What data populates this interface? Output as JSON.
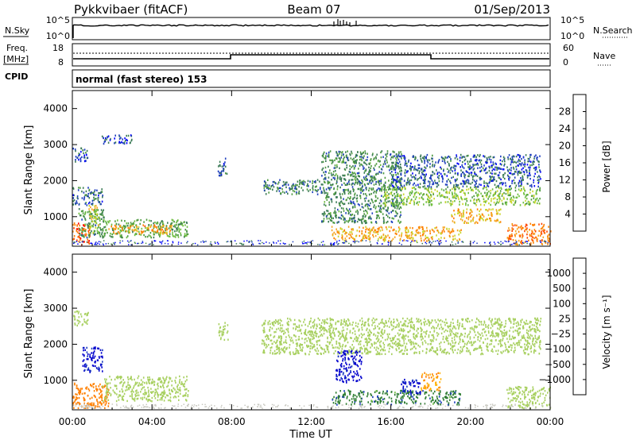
{
  "header": {
    "radar": "Pykkvibaer (fitACF)",
    "beam": "Beam 07",
    "date": "01/Sep/2013"
  },
  "strip_panels": {
    "nsky_label": "N.Sky",
    "nsky_ticks": [
      "10^5",
      "10^0"
    ],
    "nsearch_label": "N.Search",
    "freq_label_line1": "Freq.",
    "freq_label_line2": "[MHz]",
    "freq_ticks": [
      "18",
      "8"
    ],
    "nave_ticks": [
      "60",
      "0"
    ],
    "nave_label": "Nave",
    "cpid_label": "CPID",
    "cpid_text": "normal (fast stereo) 153"
  },
  "colors": {
    "power": [
      "#0000ff",
      "#1f3fbf",
      "#3a7a55",
      "#4e9a40",
      "#6fbf3f",
      "#c9d62a",
      "#f5a623",
      "#ff7f00",
      "#ff4500",
      "#ff0000"
    ],
    "velocity": [
      "#ff0000",
      "#ff4500",
      "#ff7f00",
      "#ffb000",
      "#c8c8c0",
      "#a8d060",
      "#6fbf3f",
      "#2e7d32",
      "#1f3fbf",
      "#0000cc"
    ]
  },
  "chart_data": [
    {
      "type": "heatmap",
      "panel": "power",
      "ylabel": "Slant Range [km]",
      "xlabel": "",
      "ylim": [
        180,
        4500
      ],
      "yticks": [
        "1000",
        "2000",
        "3000",
        "4000"
      ],
      "xticks": [
        "00:00",
        "04:00",
        "08:00",
        "12:00",
        "16:00",
        "20:00",
        "00:00"
      ],
      "colorbar": {
        "label": "Power [dB]",
        "ticks": [
          "4",
          "8",
          "12",
          "16",
          "20",
          "24",
          "28"
        ]
      },
      "regions": [
        {
          "t": [
            0.0,
            0.9
          ],
          "r": [
            200,
            800
          ],
          "value": 26
        },
        {
          "t": [
            0.3,
            1.6
          ],
          "r": [
            400,
            1200
          ],
          "value": 10
        },
        {
          "t": [
            0.8,
            1.3
          ],
          "r": [
            500,
            1300
          ],
          "value": 18
        },
        {
          "t": [
            0.0,
            1.5
          ],
          "r": [
            1300,
            1800
          ],
          "value": 7
        },
        {
          "t": [
            1.5,
            5.8
          ],
          "r": [
            400,
            900
          ],
          "value": 12
        },
        {
          "t": [
            1.8,
            5.0
          ],
          "r": [
            500,
            750
          ],
          "value": 22
        },
        {
          "t": [
            0.0,
            0.8
          ],
          "r": [
            2500,
            2900
          ],
          "value": 6
        },
        {
          "t": [
            1.4,
            3.0
          ],
          "r": [
            3000,
            3250
          ],
          "value": 5
        },
        {
          "t": [
            7.3,
            7.8
          ],
          "r": [
            2100,
            2600
          ],
          "value": 6
        },
        {
          "t": [
            9.5,
            12.5
          ],
          "r": [
            1600,
            2000
          ],
          "value": 8
        },
        {
          "t": [
            12.5,
            16.5
          ],
          "r": [
            800,
            2800
          ],
          "value": 9
        },
        {
          "t": [
            13.0,
            19.5
          ],
          "r": [
            300,
            700
          ],
          "value": 21
        },
        {
          "t": [
            15.5,
            23.5
          ],
          "r": [
            1300,
            1800
          ],
          "value": 15
        },
        {
          "t": [
            16.0,
            23.5
          ],
          "r": [
            1800,
            2700
          ],
          "value": 6
        },
        {
          "t": [
            19.0,
            21.5
          ],
          "r": [
            800,
            1200
          ],
          "value": 20
        },
        {
          "t": [
            21.8,
            24.0
          ],
          "r": [
            200,
            800
          ],
          "value": 24
        }
      ]
    },
    {
      "type": "heatmap",
      "panel": "velocity",
      "ylabel": "Slant Range [km]",
      "xlabel": "Time UT",
      "ylim": [
        180,
        4500
      ],
      "yticks": [
        "1000",
        "2000",
        "3000",
        "4000"
      ],
      "xticks": [
        "00:00",
        "04:00",
        "08:00",
        "12:00",
        "16:00",
        "20:00",
        "00:00"
      ],
      "colorbar": {
        "label": "Velocity [m s⁻¹]",
        "ticks": [
          "1000",
          "500",
          "100",
          "25",
          "−25",
          "−100",
          "−500",
          "−1000"
        ]
      },
      "regions": [
        {
          "t": [
            0.0,
            1.8
          ],
          "r": [
            200,
            900
          ],
          "value": -300
        },
        {
          "t": [
            0.5,
            1.5
          ],
          "r": [
            1200,
            1900
          ],
          "value": 600
        },
        {
          "t": [
            1.5,
            5.8
          ],
          "r": [
            400,
            1100
          ],
          "value": 0
        },
        {
          "t": [
            0.0,
            0.8
          ],
          "r": [
            2500,
            2900
          ],
          "value": 0
        },
        {
          "t": [
            7.3,
            7.8
          ],
          "r": [
            2100,
            2600
          ],
          "value": 0
        },
        {
          "t": [
            9.5,
            23.5
          ],
          "r": [
            1700,
            2700
          ],
          "value": 0
        },
        {
          "t": [
            13.0,
            19.5
          ],
          "r": [
            300,
            700
          ],
          "value": 80
        },
        {
          "t": [
            13.2,
            14.5
          ],
          "r": [
            900,
            1800
          ],
          "value": 700
        },
        {
          "t": [
            16.5,
            17.5
          ],
          "r": [
            600,
            1000
          ],
          "value": 600
        },
        {
          "t": [
            17.5,
            18.5
          ],
          "r": [
            700,
            1200
          ],
          "value": -100
        },
        {
          "t": [
            21.8,
            24.0
          ],
          "r": [
            200,
            800
          ],
          "value": 0
        }
      ]
    }
  ]
}
